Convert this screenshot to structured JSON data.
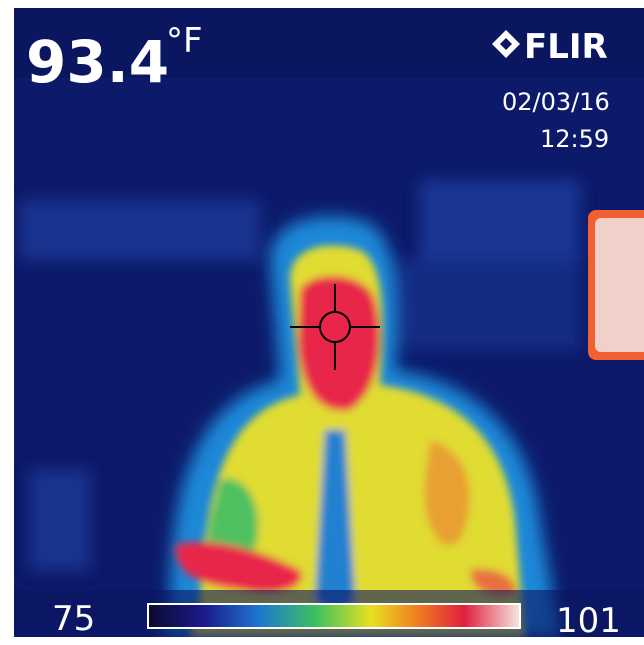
{
  "overlay": {
    "reading": {
      "value": "93.4",
      "unit": "°F"
    },
    "brand": "FLIR",
    "date": "02/03/16",
    "time": "12:59"
  },
  "scale": {
    "min": "75",
    "max": "101"
  }
}
